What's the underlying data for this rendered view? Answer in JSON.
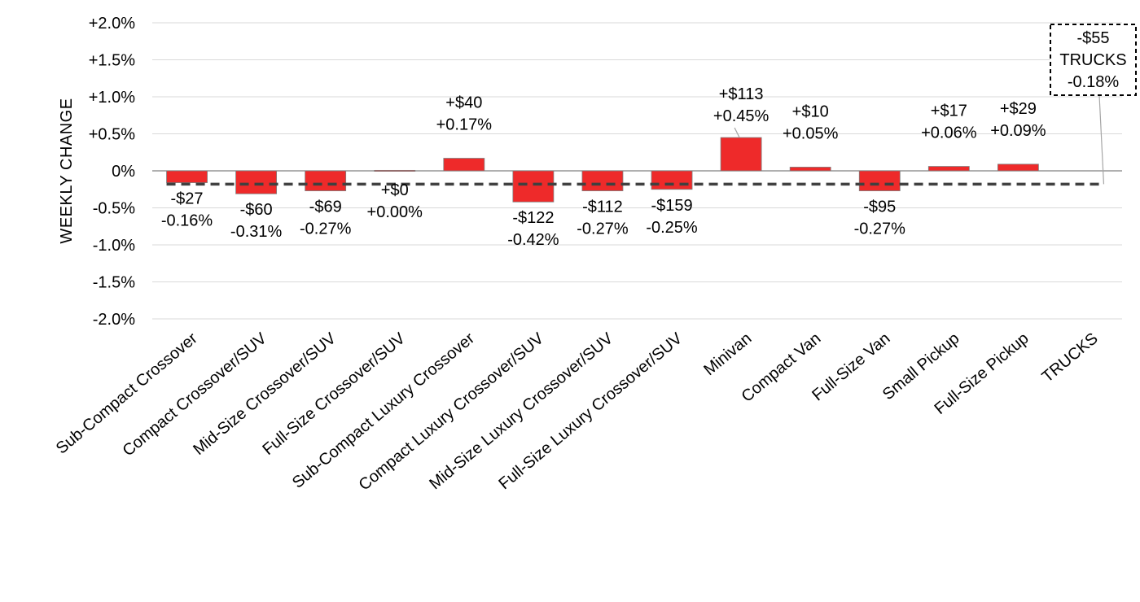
{
  "chart_data": {
    "type": "bar",
    "ylabel": "WEEKLY CHANGE",
    "ylim": [
      -2.0,
      2.0
    ],
    "yticks": [
      "+2.0%",
      "+1.5%",
      "+1.0%",
      "+0.5%",
      "0%",
      "-0.5%",
      "-1.0%",
      "-1.5%",
      "-2.0%"
    ],
    "grid": true,
    "categories": [
      "Sub-Compact Crossover",
      "Compact Crossover/SUV",
      "Mid-Size Crossover/SUV",
      "Full-Size Crossover/SUV",
      "Sub-Compact Luxury Crossover",
      "Compact Luxury Crossover/SUV",
      "Mid-Size Luxury Crossover/SUV",
      "Full-Size Luxury Crossover/SUV",
      "Minivan",
      "Compact Van",
      "Full-Size Van",
      "Small Pickup",
      "Full-Size Pickup",
      "TRUCKS"
    ],
    "values": [
      -0.16,
      -0.31,
      -0.27,
      0.0,
      0.17,
      -0.42,
      -0.27,
      -0.25,
      0.45,
      0.05,
      -0.27,
      0.06,
      0.09,
      null
    ],
    "dollar_labels": [
      "-$27",
      "-$60",
      "-$69",
      "+$0",
      "+$40",
      "-$122",
      "-$112",
      "-$159",
      "+$113",
      "+$10",
      "-$95",
      "+$17",
      "+$29",
      ""
    ],
    "percent_labels": [
      "-0.16%",
      "-0.31%",
      "-0.27%",
      "+0.00%",
      "+0.17%",
      "-0.42%",
      "-0.27%",
      "-0.25%",
      "+0.45%",
      "+0.05%",
      "-0.27%",
      "+0.06%",
      "+0.09%",
      ""
    ],
    "average": {
      "value": -0.18,
      "name": "TRUCKS",
      "dollar_label": "-$55",
      "percent_label": "-0.18%"
    },
    "colors": {
      "bar": "#ee2a2a",
      "average_line": "#404040"
    }
  }
}
